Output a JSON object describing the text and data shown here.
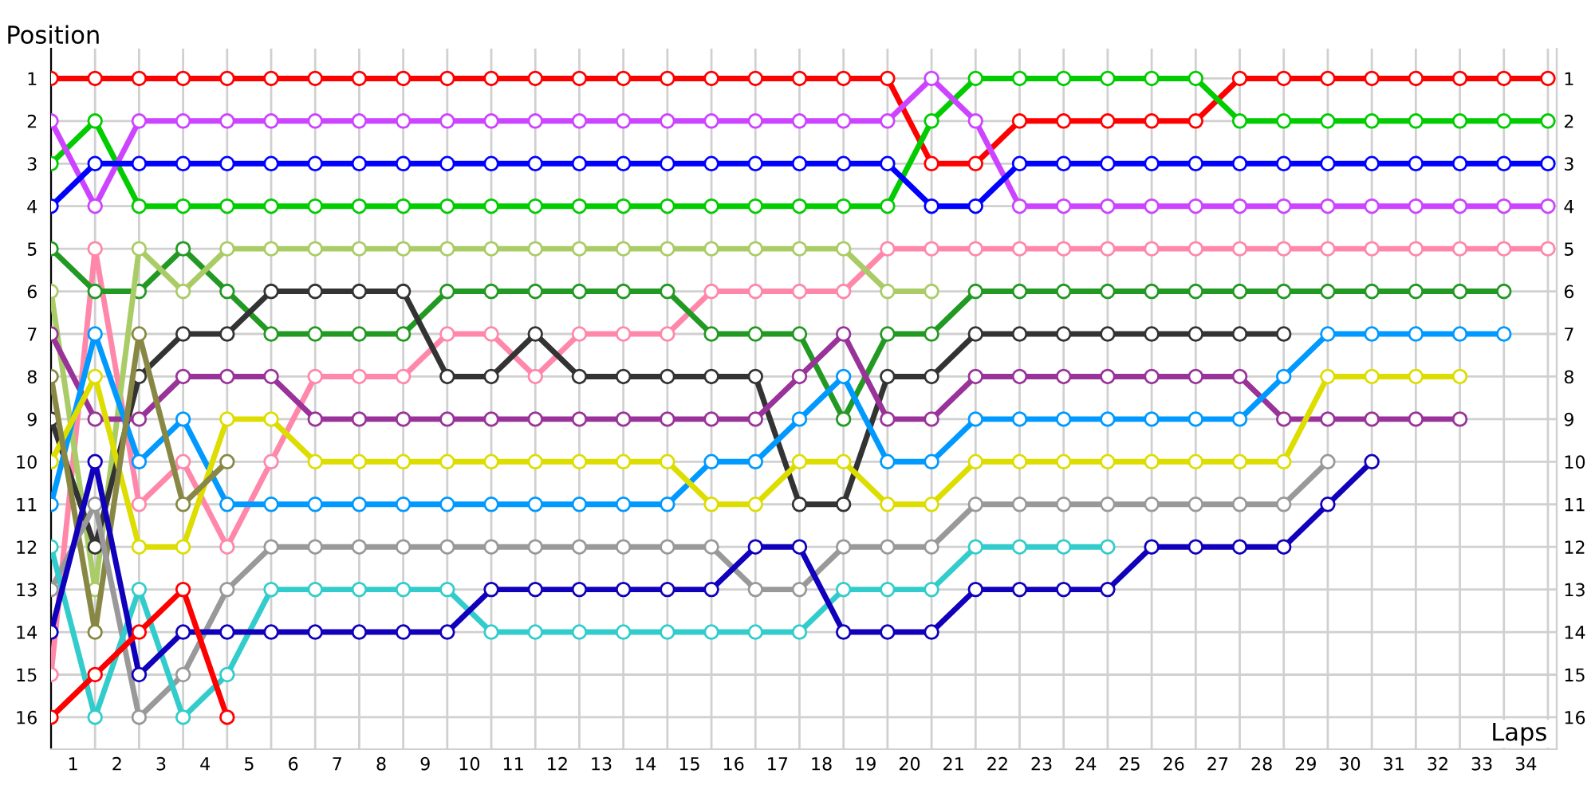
{
  "chart_data": {
    "type": "line",
    "xlabel": "Laps",
    "ylabel": "Position",
    "x": [
      0,
      1,
      2,
      3,
      4,
      5,
      6,
      7,
      8,
      9,
      10,
      11,
      12,
      13,
      14,
      15,
      16,
      17,
      18,
      19,
      20,
      21,
      22,
      23,
      24,
      25,
      26,
      27,
      28,
      29,
      30,
      31,
      32,
      33,
      34
    ],
    "xlim": [
      0,
      34.2
    ],
    "ylim": [
      16.75,
      0.3
    ],
    "xticks": [
      {
        "value": 0,
        "label": null
      },
      {
        "value": 1,
        "label": null
      },
      {
        "value": 2,
        "label": null
      },
      {
        "value": 3,
        "label": null
      },
      {
        "value": 4,
        "label": null
      },
      {
        "value": 5,
        "label": null
      },
      {
        "value": 6,
        "label": null
      },
      {
        "value": 7,
        "label": null
      },
      {
        "value": 8,
        "label": null
      },
      {
        "value": 9,
        "label": null
      },
      {
        "value": 10,
        "label": null
      },
      {
        "value": 11,
        "label": null
      },
      {
        "value": 12,
        "label": null
      },
      {
        "value": 13,
        "label": null
      },
      {
        "value": 14,
        "label": null
      },
      {
        "value": 15,
        "label": null
      },
      {
        "value": 16,
        "label": null
      },
      {
        "value": 17,
        "label": null
      },
      {
        "value": 18,
        "label": null
      },
      {
        "value": 19,
        "label": null
      },
      {
        "value": 20,
        "label": null
      },
      {
        "value": 21,
        "label": null
      },
      {
        "value": 22,
        "label": null
      },
      {
        "value": 23,
        "label": null
      },
      {
        "value": 24,
        "label": null
      },
      {
        "value": 25,
        "label": null
      },
      {
        "value": 26,
        "label": null
      },
      {
        "value": 27,
        "label": null
      },
      {
        "value": 28,
        "label": null
      },
      {
        "value": 29,
        "label": null
      },
      {
        "value": 30,
        "label": null
      },
      {
        "value": 31,
        "label": null
      },
      {
        "value": 32,
        "label": null
      },
      {
        "value": 33,
        "label": null
      },
      {
        "value": 34,
        "label": null
      },
      {
        "value": 0.5,
        "label": "1"
      },
      {
        "value": 1.5,
        "label": "2"
      },
      {
        "value": 2.5,
        "label": "3"
      },
      {
        "value": 3.5,
        "label": "4"
      },
      {
        "value": 4.5,
        "label": "5"
      },
      {
        "value": 5.5,
        "label": "6"
      },
      {
        "value": 6.5,
        "label": "7"
      },
      {
        "value": 7.5,
        "label": "8"
      },
      {
        "value": 8.5,
        "label": "9"
      },
      {
        "value": 9.5,
        "label": "10"
      },
      {
        "value": 10.5,
        "label": "11"
      },
      {
        "value": 11.5,
        "label": "12"
      },
      {
        "value": 12.5,
        "label": "13"
      },
      {
        "value": 13.5,
        "label": "14"
      },
      {
        "value": 14.5,
        "label": "15"
      },
      {
        "value": 15.5,
        "label": "16"
      },
      {
        "value": 16.5,
        "label": "17"
      },
      {
        "value": 17.5,
        "label": "18"
      },
      {
        "value": 18.5,
        "label": "19"
      },
      {
        "value": 19.5,
        "label": "20"
      },
      {
        "value": 20.5,
        "label": "21"
      },
      {
        "value": 21.5,
        "label": "22"
      },
      {
        "value": 22.5,
        "label": "23"
      },
      {
        "value": 23.5,
        "label": "24"
      },
      {
        "value": 24.5,
        "label": "25"
      },
      {
        "value": 25.5,
        "label": "26"
      },
      {
        "value": 26.5,
        "label": "27"
      },
      {
        "value": 27.5,
        "label": "28"
      },
      {
        "value": 28.5,
        "label": "29"
      },
      {
        "value": 29.5,
        "label": "30"
      },
      {
        "value": 30.5,
        "label": "31"
      },
      {
        "value": 31.5,
        "label": "32"
      },
      {
        "value": 32.5,
        "label": "33"
      },
      {
        "value": 33.5,
        "label": "34"
      }
    ],
    "yticks": [
      1,
      2,
      3,
      4,
      5,
      6,
      7,
      8,
      9,
      10,
      11,
      12,
      13,
      14,
      15,
      16
    ],
    "y2lim": [
      16.75,
      0.3
    ],
    "y2ticks": [
      1,
      2,
      3,
      4,
      5,
      6,
      7,
      8,
      9,
      10,
      11,
      12,
      13,
      14,
      15,
      16
    ],
    "grid": true,
    "marker": "circle",
    "line_style": "solid",
    "series": [
      {
        "color": "#ff0000",
        "values": [
          1,
          1,
          1,
          1,
          1,
          1,
          1,
          1,
          1,
          1,
          1,
          1,
          1,
          1,
          1,
          1,
          1,
          1,
          1,
          1,
          3,
          3,
          2,
          2,
          2,
          2,
          2,
          1,
          1,
          1,
          1,
          1,
          1,
          1,
          1
        ]
      },
      {
        "color": "#00cc00",
        "values": [
          3,
          2,
          4,
          4,
          4,
          4,
          4,
          4,
          4,
          4,
          4,
          4,
          4,
          4,
          4,
          4,
          4,
          4,
          4,
          4,
          2,
          1,
          1,
          1,
          1,
          1,
          1,
          2,
          2,
          2,
          2,
          2,
          2,
          2,
          2
        ]
      },
      {
        "color": "#cc44ff",
        "values": [
          2,
          4,
          2,
          2,
          2,
          2,
          2,
          2,
          2,
          2,
          2,
          2,
          2,
          2,
          2,
          2,
          2,
          2,
          2,
          2,
          1,
          2,
          4,
          4,
          4,
          4,
          4,
          4,
          4,
          4,
          4,
          4,
          4,
          4,
          4
        ]
      },
      {
        "color": "#0000ff",
        "values": [
          4,
          3,
          3,
          3,
          3,
          3,
          3,
          3,
          3,
          3,
          3,
          3,
          3,
          3,
          3,
          3,
          3,
          3,
          3,
          3,
          4,
          4,
          3,
          3,
          3,
          3,
          3,
          3,
          3,
          3,
          3,
          3,
          3,
          3,
          3
        ]
      },
      {
        "color": "#ff88aa",
        "values": [
          15,
          5,
          11,
          10,
          12,
          10,
          8,
          8,
          8,
          7,
          7,
          8,
          7,
          7,
          7,
          6,
          6,
          6,
          6,
          5,
          5,
          5,
          5,
          5,
          5,
          5,
          5,
          5,
          5,
          5,
          5,
          5,
          5,
          5,
          5
        ]
      },
      {
        "color": "#229922",
        "values": [
          5,
          6,
          6,
          5,
          6,
          7,
          7,
          7,
          7,
          6,
          6,
          6,
          6,
          6,
          6,
          7,
          7,
          7,
          9,
          7,
          7,
          6,
          6,
          6,
          6,
          6,
          6,
          6,
          6,
          6,
          6,
          6,
          6,
          6,
          null
        ]
      },
      {
        "color": "#aacc66",
        "values": [
          6,
          13,
          5,
          6,
          5,
          5,
          5,
          5,
          5,
          5,
          5,
          5,
          5,
          5,
          5,
          5,
          5,
          5,
          5,
          6,
          6,
          null,
          null,
          null,
          null,
          null,
          null,
          null,
          null,
          null,
          null,
          null,
          null,
          null,
          null
        ]
      },
      {
        "color": "#333333",
        "values": [
          9,
          12,
          8,
          7,
          7,
          6,
          6,
          6,
          6,
          8,
          8,
          7,
          8,
          8,
          8,
          8,
          8,
          11,
          11,
          8,
          8,
          7,
          7,
          7,
          7,
          7,
          7,
          7,
          7,
          null,
          null,
          null,
          null,
          null,
          null
        ]
      },
      {
        "color": "#993399",
        "values": [
          7,
          9,
          9,
          8,
          8,
          8,
          9,
          9,
          9,
          9,
          9,
          9,
          9,
          9,
          9,
          9,
          9,
          8,
          7,
          9,
          9,
          8,
          8,
          8,
          8,
          8,
          8,
          8,
          9,
          9,
          9,
          9,
          9,
          null,
          null
        ]
      },
      {
        "color": "#0099ff",
        "values": [
          11,
          7,
          10,
          9,
          11,
          11,
          11,
          11,
          11,
          11,
          11,
          11,
          11,
          11,
          11,
          10,
          10,
          9,
          8,
          10,
          10,
          9,
          9,
          9,
          9,
          9,
          9,
          9,
          8,
          7,
          7,
          7,
          7,
          7,
          null
        ]
      },
      {
        "color": "#dddd00",
        "values": [
          10,
          8,
          12,
          12,
          9,
          9,
          10,
          10,
          10,
          10,
          10,
          10,
          10,
          10,
          10,
          11,
          11,
          10,
          10,
          11,
          11,
          10,
          10,
          10,
          10,
          10,
          10,
          10,
          10,
          8,
          8,
          8,
          8,
          null,
          null
        ]
      },
      {
        "color": "#888844",
        "values": [
          8,
          14,
          7,
          11,
          10,
          null,
          null,
          null,
          null,
          null,
          null,
          null,
          null,
          null,
          null,
          null,
          null,
          null,
          null,
          null,
          null,
          null,
          null,
          null,
          null,
          null,
          null,
          null,
          null,
          null,
          null,
          null,
          null,
          null,
          null
        ]
      },
      {
        "color": "#999999",
        "values": [
          13,
          11,
          16,
          15,
          13,
          12,
          12,
          12,
          12,
          12,
          12,
          12,
          12,
          12,
          12,
          12,
          13,
          13,
          12,
          12,
          12,
          11,
          11,
          11,
          11,
          11,
          11,
          11,
          11,
          10,
          null,
          null,
          null,
          null,
          null
        ]
      },
      {
        "color": "#33cccc",
        "values": [
          12,
          16,
          13,
          16,
          15,
          13,
          13,
          13,
          13,
          13,
          14,
          14,
          14,
          14,
          14,
          14,
          14,
          14,
          13,
          13,
          13,
          12,
          12,
          12,
          12,
          null,
          null,
          null,
          null,
          null,
          null,
          null,
          null,
          null,
          null
        ]
      },
      {
        "color": "#1100bb",
        "values": [
          14,
          10,
          15,
          14,
          14,
          14,
          14,
          14,
          14,
          14,
          13,
          13,
          13,
          13,
          13,
          13,
          12,
          12,
          14,
          14,
          14,
          13,
          13,
          13,
          13,
          12,
          12,
          12,
          12,
          11,
          10,
          null,
          null,
          null,
          null
        ]
      },
      {
        "color": "#ff0000",
        "values": [
          16,
          15,
          14,
          13,
          16,
          null,
          null,
          null,
          null,
          null,
          null,
          null,
          null,
          null,
          null,
          null,
          null,
          null,
          null,
          null,
          null,
          null,
          null,
          null,
          null,
          null,
          null,
          null,
          null,
          null,
          null,
          null,
          null,
          null,
          null
        ]
      }
    ]
  }
}
